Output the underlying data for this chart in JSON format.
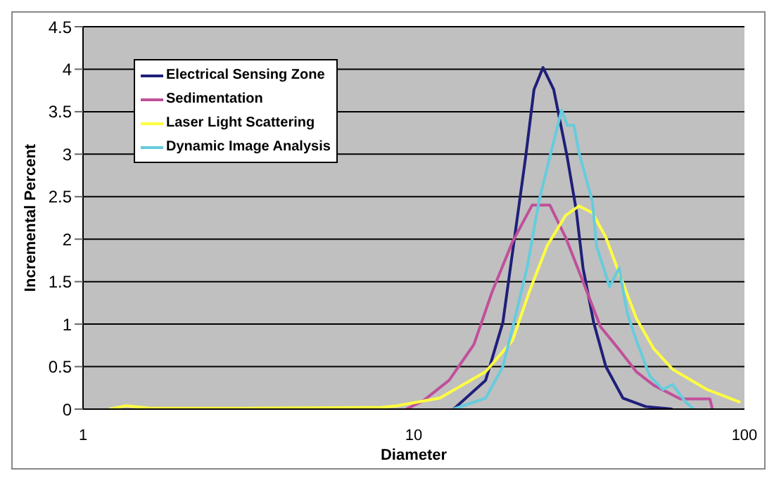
{
  "chart_data": {
    "type": "line",
    "xlabel": "Diameter",
    "ylabel": "Incremental Percent",
    "log": "x",
    "xlim": [
      1,
      100
    ],
    "xticks": [
      1,
      10,
      100
    ],
    "ylim": [
      0,
      4.5
    ],
    "yticks": [
      0,
      0.5,
      1,
      1.5,
      2,
      2.5,
      3,
      3.5,
      4,
      4.5
    ],
    "grid": "y",
    "legend": "top left",
    "marker": "none",
    "line_style": "solid",
    "series": [
      {
        "name": "Electrical Sensing Zone",
        "color": "#1f1f7a",
        "x": [
          13.2,
          16.5,
          18.6,
          20.1,
          21.8,
          23.1,
          24.6,
          26.5,
          29.1,
          31.0,
          32.5,
          35.0,
          38.1,
          42.9,
          50.3,
          60.6
        ],
        "values": [
          0,
          0.34,
          1.02,
          1.97,
          2.97,
          3.76,
          4.02,
          3.76,
          2.97,
          2.34,
          1.66,
          1.02,
          0.5,
          0.13,
          0.03,
          0
        ]
      },
      {
        "name": "Sedimentation",
        "color": "#c0509a",
        "x": [
          9.5,
          10.7,
          12.8,
          15.2,
          17.3,
          19.9,
          22.8,
          25.8,
          28.8,
          32.5,
          36.7,
          41.8,
          47.1,
          53.2,
          64.0,
          78.6,
          80.0
        ],
        "values": [
          0,
          0.1,
          0.34,
          0.76,
          1.39,
          1.97,
          2.4,
          2.4,
          2.02,
          1.5,
          0.97,
          0.7,
          0.44,
          0.28,
          0.12,
          0.12,
          0
        ]
      },
      {
        "name": "Laser Light Scattering",
        "color": "#ffff40",
        "x": [
          1.2,
          1.35,
          1.6,
          3,
          8,
          8.9,
          12.0,
          16.5,
          19.9,
          22.4,
          25.3,
          28.8,
          31.6,
          34.7,
          38.1,
          41.8,
          47.1,
          53.2,
          60.6,
          77.1,
          97.2
        ],
        "values": [
          0,
          0.04,
          0.01,
          0.01,
          0.02,
          0.04,
          0.13,
          0.44,
          0.81,
          1.39,
          1.92,
          2.28,
          2.39,
          2.31,
          2.02,
          1.6,
          1.07,
          0.71,
          0.47,
          0.23,
          0.08
        ]
      },
      {
        "name": "Dynamic Image Analysis",
        "color": "#66ccdd",
        "x": [
          13.2,
          16.5,
          18.6,
          20.4,
          22.0,
          23.9,
          25.8,
          28.0,
          29.1,
          30.5,
          31.6,
          34.7,
          35.7,
          39.1,
          41.8,
          44.2,
          47.1,
          51.7,
          56.7,
          60.6,
          66.5,
          70.3
        ],
        "values": [
          0,
          0.13,
          0.5,
          1.13,
          1.66,
          2.44,
          2.97,
          3.52,
          3.34,
          3.34,
          3.02,
          2.44,
          1.92,
          1.44,
          1.66,
          1.13,
          0.81,
          0.39,
          0.23,
          0.29,
          0.08,
          0
        ]
      }
    ]
  }
}
